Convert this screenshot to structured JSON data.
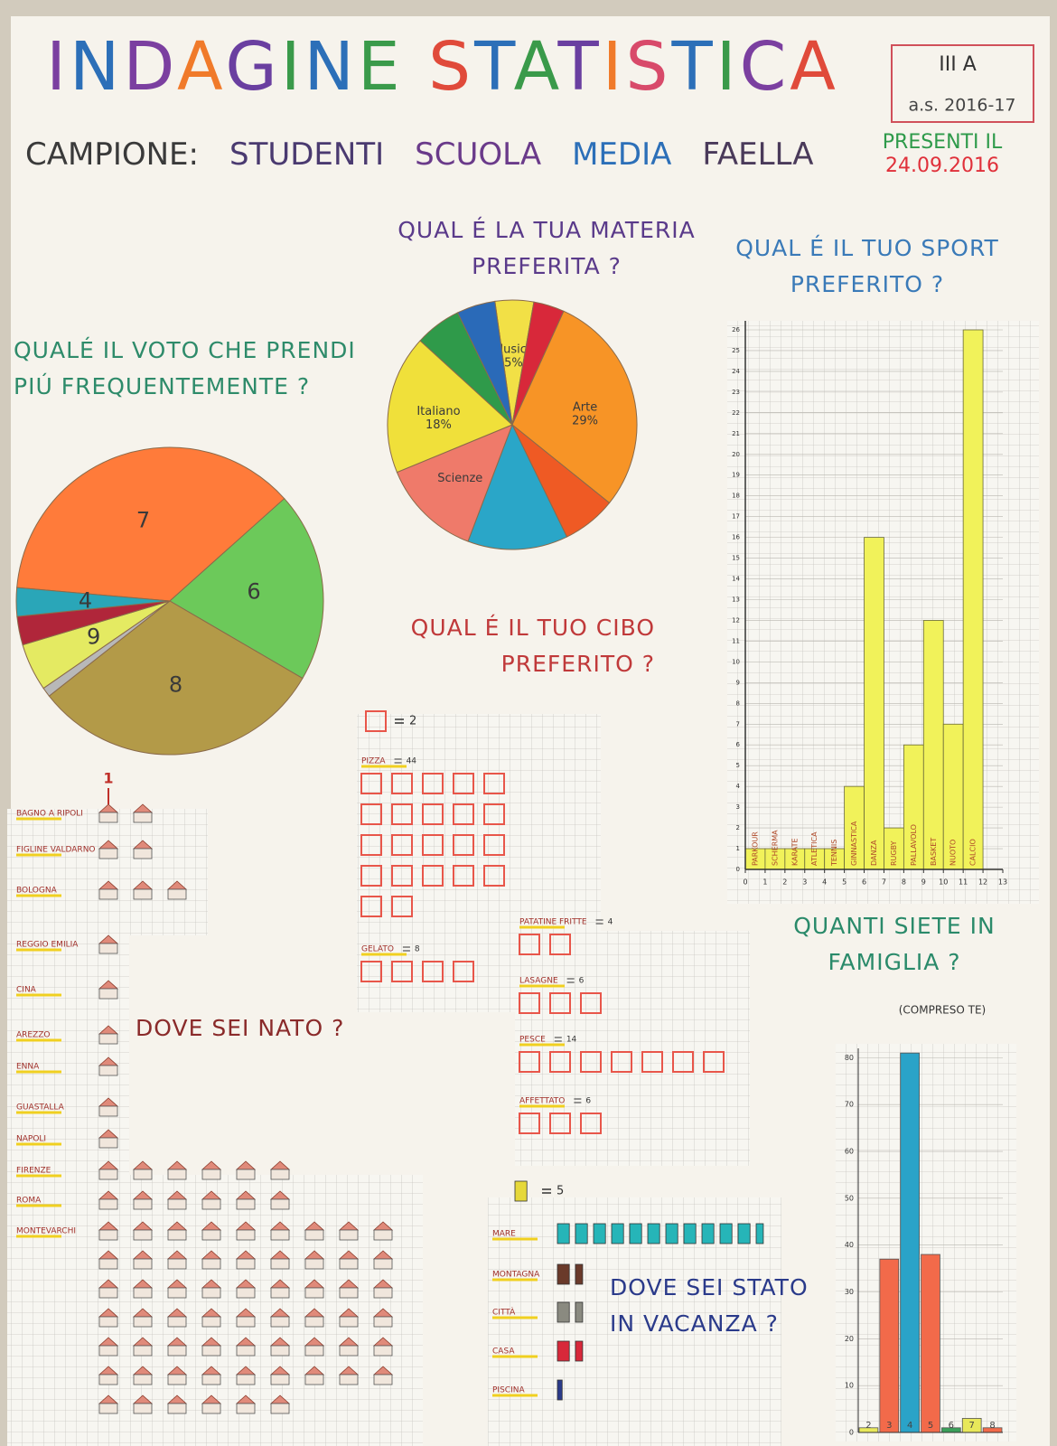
{
  "header": {
    "title": "INDAGINE STATISTICA",
    "class": "III A",
    "year": "a.s. 2016-17",
    "sample": "CAMPIONE: STUDENTI SCUOLA MEDIA FAELLA",
    "present_label": "PRESENTI IL",
    "date": "24.09.2016"
  },
  "chart_data": [
    {
      "type": "pie",
      "title": "QUALÉ IL VOTO CHE PRENDI PIÚ FREQUENTEMENTE ?",
      "categories": [
        "7",
        "6",
        "8",
        null,
        "9",
        null,
        "4"
      ],
      "values": [
        37,
        20,
        31,
        1,
        5,
        3,
        3
      ],
      "colors": [
        "#ff7b3a",
        "#6cc95a",
        "#b39a48",
        "#b8b8b8",
        "#e4ea62",
        "#b0263a",
        "#2aa6b8"
      ]
    },
    {
      "type": "pie",
      "title": "QUAL É LA TUA MATERIA PREFERITA ?",
      "categories": [
        "Musica",
        null,
        "Arte",
        null,
        null,
        "Scienze",
        "Italiano",
        null,
        null
      ],
      "values": [
        5,
        4,
        29,
        7,
        13,
        13,
        18,
        6,
        5
      ],
      "value_labels": [
        "5%",
        null,
        "29%",
        null,
        null,
        null,
        "18%",
        null,
        null
      ],
      "colors": [
        "#f2e046",
        "#d8283a",
        "#f79426",
        "#ef5a24",
        "#2aa6c8",
        "#ef7a6a",
        "#f0e03a",
        "#2f9a4a",
        "#2a6ab8"
      ]
    },
    {
      "type": "histogram",
      "title": "QUAL É IL TUO SPORT PREFERITO ?",
      "categories": [
        "PARKOUR",
        "SCHERMA",
        "KARATE",
        "ATLETICA",
        "TENNIS",
        "GINNASTICA",
        "DANZA",
        "RUGBY",
        "PALLAVOLO",
        "BASKET",
        "NUOTO",
        "CALCIO"
      ],
      "bins": [
        0,
        1,
        2,
        3,
        4,
        5,
        6,
        7,
        8,
        9,
        10,
        11,
        12
      ],
      "values": [
        1,
        1,
        1,
        1,
        1,
        4,
        16,
        2,
        6,
        12,
        7,
        26
      ],
      "color": "#f1f25a",
      "xlim": [
        0,
        13
      ],
      "xticks": [
        0,
        1,
        2,
        3,
        4,
        5,
        6,
        7,
        8,
        9,
        10,
        11,
        12,
        13
      ],
      "ylim": [
        0,
        26
      ],
      "yticks": [
        0,
        1,
        2,
        3,
        4,
        5,
        6,
        7,
        8,
        9,
        10,
        11,
        12,
        13,
        14,
        15,
        16,
        17,
        18,
        19,
        20,
        21,
        22,
        23,
        24,
        25,
        26
      ],
      "grid": true
    },
    {
      "type": "pictogram",
      "title": "QUAL É IL TUO CIBO PREFERITO ?",
      "unit_value": 2,
      "icon": "square",
      "show_values": true,
      "categories": [
        "PIZZA",
        "GELATO",
        "PATATINE FRITTE",
        "LASAGNE",
        "PESCE",
        "AFFETTATO"
      ],
      "values": [
        44,
        8,
        4,
        6,
        14,
        6
      ],
      "color": "#e8564a"
    },
    {
      "type": "pictogram",
      "title": "DOVE SEI NATO ?",
      "unit_value": 1,
      "icon": "house",
      "show_values": false,
      "categories": [
        "BAGNO A RIPOLI",
        "FIGLINE VALDARNO",
        "BOLOGNA",
        "REGGIO EMILIA",
        "CINA",
        "AREZZO",
        "ENNA",
        "GUASTALLA",
        "NAPOLI",
        "FIRENZE",
        "ROMA",
        "MONTEVARCHI"
      ],
      "values": [
        2,
        2,
        3,
        1,
        1,
        1,
        1,
        1,
        1,
        6,
        6,
        60
      ],
      "color": "#d9705a"
    },
    {
      "type": "pictogram",
      "title": "DOVE SEI STATO IN VACANZA ?",
      "unit_value": 5,
      "icon": "bar",
      "show_values": false,
      "categories": [
        "MARE",
        "MONTAGNA",
        "CITTÀ",
        "CASA",
        "PISCINA"
      ],
      "values": [
        58,
        8,
        8,
        8,
        2
      ],
      "colors": [
        "#26b5b8",
        "#6a3a2a",
        "#8a8a80",
        "#d8283a",
        "#2a3a8a"
      ],
      "legend_color": "#e6d83a"
    },
    {
      "type": "bar",
      "title": "QUANTI SIETE IN FAMIGLIA ?",
      "subtitle": "(COMPRESO TE)",
      "categories": [
        "2",
        "3",
        "4",
        "5",
        "6",
        "7",
        "8"
      ],
      "values": [
        1,
        37,
        81,
        38,
        1,
        3,
        1
      ],
      "colors": [
        "#e8e85a",
        "#f26a4a",
        "#2aa3c8",
        "#f26a4a",
        "#3aa05a",
        "#e8e85a",
        "#f26a4a"
      ],
      "ylim": [
        0,
        82
      ],
      "yticks": [
        0,
        10,
        20,
        30,
        40,
        50,
        60,
        70,
        80
      ],
      "grid": true
    }
  ]
}
